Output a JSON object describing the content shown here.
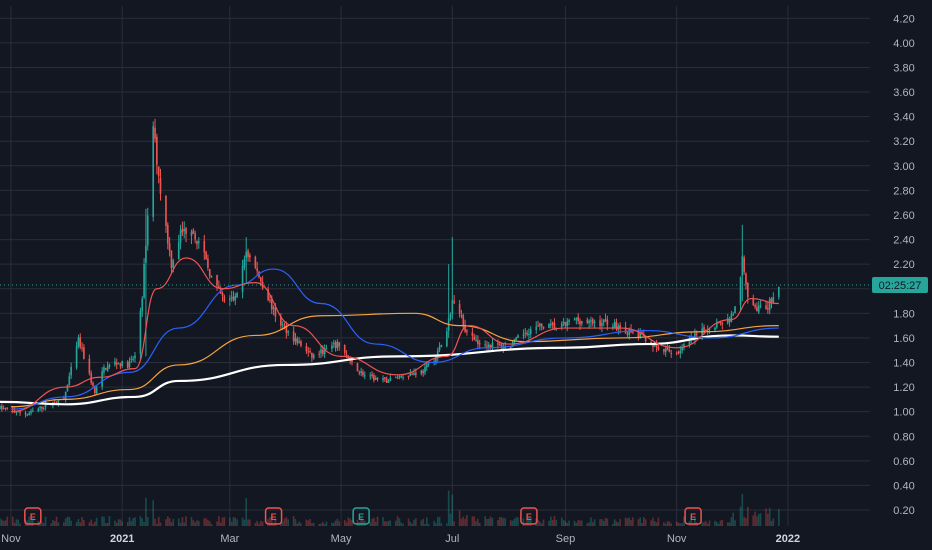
{
  "chart_data": {
    "type": "candlestick",
    "y_axis": {
      "ticks": [
        "0.20",
        "0.40",
        "0.60",
        "0.80",
        "1.00",
        "1.20",
        "1.40",
        "1.60",
        "1.80",
        "2.00",
        "2.20",
        "2.40",
        "2.60",
        "2.80",
        "3.00",
        "3.20",
        "3.40",
        "3.60",
        "3.80",
        "4.00",
        "4.20"
      ],
      "ylim": [
        0.07,
        4.3
      ]
    },
    "x_axis": {
      "labels": [
        {
          "text": "Nov",
          "date": "2020-11-01",
          "bold": false
        },
        {
          "text": "2021",
          "date": "2021-01-01",
          "bold": true
        },
        {
          "text": "Mar",
          "date": "2021-03-01",
          "bold": false
        },
        {
          "text": "May",
          "date": "2021-05-01",
          "bold": false
        },
        {
          "text": "Jul",
          "date": "2021-07-01",
          "bold": false
        },
        {
          "text": "Sep",
          "date": "2021-09-01",
          "bold": false
        },
        {
          "text": "Nov",
          "date": "2021-11-01",
          "bold": false
        },
        {
          "text": "2022",
          "date": "2022-01-01",
          "bold": true
        }
      ],
      "xlim": [
        "2020-10-26",
        "2022-02-15"
      ]
    },
    "current_price_tag": "02:25:27",
    "current_price": 2.03,
    "colors": {
      "up": "#26a69a",
      "down": "#ef5350",
      "background": "#131722",
      "grid": "#2a2e39",
      "ma_fast": "#ef5350",
      "ma_mid": "#2962ff",
      "ma_slow": "#f7a440",
      "ma_long": "#ffffff"
    },
    "price_keypoints": [
      [
        "2020-10-26",
        1.03
      ],
      [
        "2020-11-10",
        0.98
      ],
      [
        "2020-11-20",
        1.05
      ],
      [
        "2020-11-30",
        1.1
      ],
      [
        "2020-12-05",
        1.4
      ],
      [
        "2020-12-08",
        1.58
      ],
      [
        "2020-12-12",
        1.4
      ],
      [
        "2020-12-17",
        1.15
      ],
      [
        "2020-12-22",
        1.35
      ],
      [
        "2020-12-28",
        1.4
      ],
      [
        "2021-01-04",
        1.38
      ],
      [
        "2021-01-08",
        1.45
      ],
      [
        "2021-01-12",
        1.95
      ],
      [
        "2021-01-15",
        2.6
      ],
      [
        "2021-01-18",
        3.3
      ],
      [
        "2021-01-22",
        2.8
      ],
      [
        "2021-01-28",
        2.2
      ],
      [
        "2021-02-02",
        2.45
      ],
      [
        "2021-02-08",
        2.5
      ],
      [
        "2021-02-14",
        2.3
      ],
      [
        "2021-02-20",
        2.05
      ],
      [
        "2021-02-26",
        1.9
      ],
      [
        "2021-03-04",
        1.92
      ],
      [
        "2021-03-10",
        2.3
      ],
      [
        "2021-03-14",
        2.2
      ],
      [
        "2021-03-20",
        2.0
      ],
      [
        "2021-03-27",
        1.75
      ],
      [
        "2021-04-05",
        1.6
      ],
      [
        "2021-04-15",
        1.45
      ],
      [
        "2021-04-22",
        1.5
      ],
      [
        "2021-04-30",
        1.55
      ],
      [
        "2021-05-06",
        1.4
      ],
      [
        "2021-05-15",
        1.28
      ],
      [
        "2021-05-25",
        1.25
      ],
      [
        "2021-06-05",
        1.3
      ],
      [
        "2021-06-15",
        1.33
      ],
      [
        "2021-06-22",
        1.45
      ],
      [
        "2021-06-28",
        1.65
      ],
      [
        "2021-07-01",
        1.9
      ],
      [
        "2021-07-05",
        1.8
      ],
      [
        "2021-07-10",
        1.6
      ],
      [
        "2021-07-20",
        1.55
      ],
      [
        "2021-08-01",
        1.52
      ],
      [
        "2021-08-10",
        1.65
      ],
      [
        "2021-08-20",
        1.7
      ],
      [
        "2021-08-28",
        1.68
      ],
      [
        "2021-09-06",
        1.75
      ],
      [
        "2021-09-15",
        1.72
      ],
      [
        "2021-09-25",
        1.73
      ],
      [
        "2021-10-05",
        1.65
      ],
      [
        "2021-10-15",
        1.6
      ],
      [
        "2021-10-22",
        1.5
      ],
      [
        "2021-11-01",
        1.48
      ],
      [
        "2021-11-10",
        1.6
      ],
      [
        "2021-11-20",
        1.7
      ],
      [
        "2021-11-30",
        1.75
      ],
      [
        "2021-12-05",
        1.9
      ],
      [
        "2021-12-07",
        2.25
      ],
      [
        "2021-12-10",
        1.95
      ],
      [
        "2021-12-15",
        1.85
      ],
      [
        "2021-12-20",
        1.82
      ],
      [
        "2021-12-24",
        1.95
      ],
      [
        "2021-12-27",
        2.03
      ]
    ],
    "spikes": [
      {
        "date": "2021-01-14",
        "high": 2.65,
        "low": 1.45
      },
      {
        "date": "2021-01-16",
        "high": 3.85,
        "low": 2.6
      },
      {
        "date": "2021-01-18",
        "high": 3.2,
        "low": 2.7
      },
      {
        "date": "2021-03-10",
        "high": 2.42,
        "low": 2.05
      },
      {
        "date": "2021-06-29",
        "high": 2.2,
        "low": 1.6
      },
      {
        "date": "2021-07-01",
        "high": 2.42,
        "low": 1.75
      },
      {
        "date": "2021-07-03",
        "high": 2.1,
        "low": 1.78
      },
      {
        "date": "2021-12-07",
        "high": 2.52,
        "low": 1.9
      }
    ],
    "moving_averages": [
      {
        "key": "ma_long",
        "width": 2.2,
        "points": [
          [
            "2020-10-26",
            1.08
          ],
          [
            "2020-12-01",
            1.06
          ],
          [
            "2021-01-08",
            1.12
          ],
          [
            "2021-02-01",
            1.25
          ],
          [
            "2021-04-01",
            1.38
          ],
          [
            "2021-06-01",
            1.45
          ],
          [
            "2021-09-01",
            1.52
          ],
          [
            "2021-10-15",
            1.55
          ],
          [
            "2021-12-01",
            1.62
          ],
          [
            "2021-12-27",
            1.61
          ]
        ]
      },
      {
        "key": "ma_slow",
        "width": 1.2,
        "points": [
          [
            "2020-11-01",
            1.04
          ],
          [
            "2020-12-01",
            1.1
          ],
          [
            "2021-01-05",
            1.18
          ],
          [
            "2021-02-01",
            1.38
          ],
          [
            "2021-03-15",
            1.62
          ],
          [
            "2021-04-20",
            1.78
          ],
          [
            "2021-06-10",
            1.8
          ],
          [
            "2021-07-05",
            1.7
          ],
          [
            "2021-08-10",
            1.57
          ],
          [
            "2021-10-01",
            1.6
          ],
          [
            "2021-11-15",
            1.65
          ],
          [
            "2021-12-27",
            1.7
          ]
        ]
      },
      {
        "key": "ma_mid",
        "width": 1.2,
        "points": [
          [
            "2020-11-01",
            1.02
          ],
          [
            "2020-12-01",
            1.12
          ],
          [
            "2021-01-05",
            1.32
          ],
          [
            "2021-02-01",
            1.68
          ],
          [
            "2021-03-05",
            2.03
          ],
          [
            "2021-03-25",
            2.16
          ],
          [
            "2021-04-20",
            1.88
          ],
          [
            "2021-05-20",
            1.55
          ],
          [
            "2021-06-20",
            1.4
          ],
          [
            "2021-07-20",
            1.52
          ],
          [
            "2021-09-01",
            1.6
          ],
          [
            "2021-10-15",
            1.66
          ],
          [
            "2021-11-20",
            1.6
          ],
          [
            "2021-12-27",
            1.68
          ]
        ]
      },
      {
        "key": "ma_fast",
        "width": 1.2,
        "points": [
          [
            "2020-11-01",
            1.0
          ],
          [
            "2020-12-01",
            1.2
          ],
          [
            "2020-12-20",
            1.28
          ],
          [
            "2021-01-08",
            1.35
          ],
          [
            "2021-01-20",
            2.0
          ],
          [
            "2021-02-05",
            2.25
          ],
          [
            "2021-02-25",
            2.0
          ],
          [
            "2021-03-15",
            2.05
          ],
          [
            "2021-04-05",
            1.7
          ],
          [
            "2021-05-01",
            1.45
          ],
          [
            "2021-06-01",
            1.3
          ],
          [
            "2021-06-28",
            1.45
          ],
          [
            "2021-07-10",
            1.7
          ],
          [
            "2021-08-01",
            1.55
          ],
          [
            "2021-09-01",
            1.68
          ],
          [
            "2021-10-01",
            1.68
          ],
          [
            "2021-11-01",
            1.52
          ],
          [
            "2021-12-01",
            1.75
          ],
          [
            "2021-12-12",
            1.92
          ],
          [
            "2021-12-27",
            1.88
          ]
        ]
      }
    ],
    "earnings_markers": [
      {
        "date": "2020-11-13",
        "label": "E",
        "color": "#ef5350"
      },
      {
        "date": "2021-03-25",
        "label": "E",
        "color": "#ef5350"
      },
      {
        "date": "2021-05-12",
        "label": "E",
        "color": "#26a69a"
      },
      {
        "date": "2021-08-12",
        "label": "E",
        "color": "#ef5350"
      },
      {
        "date": "2021-11-10",
        "label": "E",
        "color": "#ef5350"
      }
    ]
  }
}
